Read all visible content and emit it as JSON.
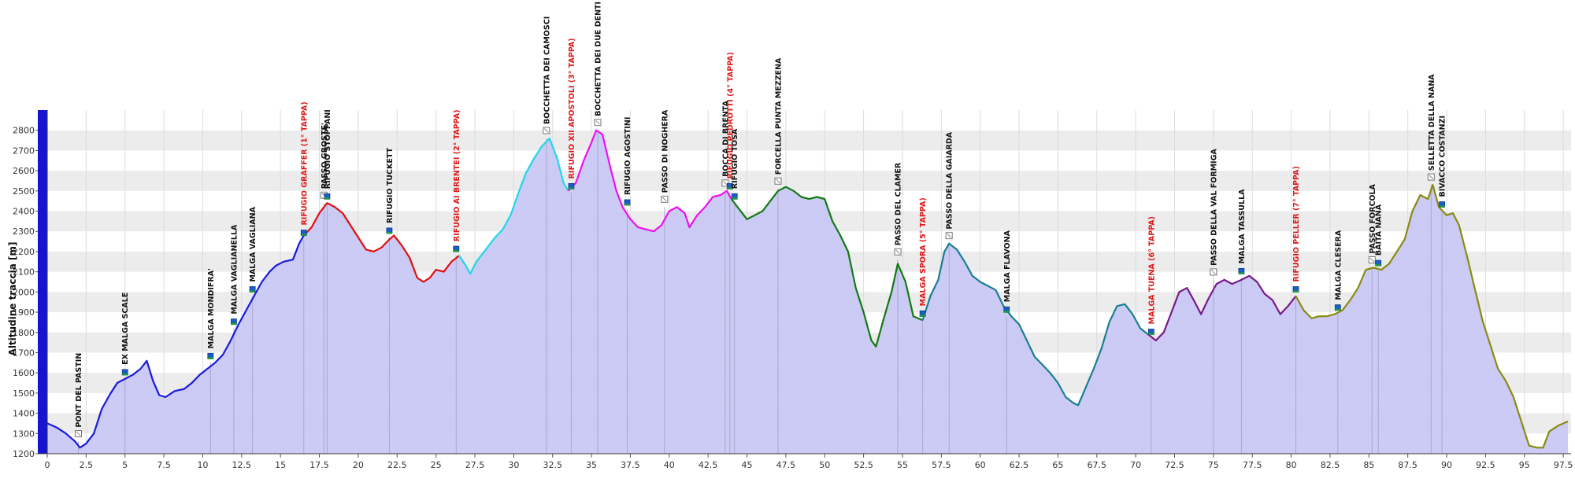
{
  "chart_data": {
    "type": "area",
    "ylabel": "Altitudine traccia [m]",
    "xlim": [
      0,
      98
    ],
    "ylim": [
      1200,
      2900
    ],
    "x_ticks": [
      "0",
      "2.5",
      "5",
      "7.5",
      "10",
      "12.5",
      "15",
      "17.5",
      "20",
      "22.5",
      "25",
      "27.5",
      "30",
      "32.5",
      "35",
      "37.5",
      "40",
      "42.5",
      "45",
      "47.5",
      "50",
      "52.5",
      "55",
      "57.5",
      "60",
      "62.5",
      "65",
      "67.5",
      "70",
      "72.5",
      "75",
      "77.5",
      "80",
      "82.5",
      "85",
      "87.5",
      "90",
      "92.5",
      "95",
      "97.5"
    ],
    "y_ticks": [
      "1200",
      "1300",
      "1400",
      "1500",
      "1600",
      "1700",
      "1800",
      "1900",
      "2000",
      "2100",
      "2200",
      "2300",
      "2400",
      "2500",
      "2600",
      "2700",
      "2800"
    ],
    "grid": true,
    "fill_color": "#c8c8f6",
    "segments": [
      {
        "stage": 1,
        "color": "#1a1adc",
        "points": [
          [
            0,
            1350
          ],
          [
            0.6,
            1330
          ],
          [
            1.2,
            1300
          ],
          [
            1.8,
            1260
          ],
          [
            2.1,
            1230
          ],
          [
            2.5,
            1250
          ],
          [
            3,
            1300
          ],
          [
            3.5,
            1420
          ],
          [
            4,
            1490
          ],
          [
            4.5,
            1550
          ],
          [
            5,
            1570
          ],
          [
            5.5,
            1590
          ],
          [
            6,
            1620
          ],
          [
            6.4,
            1660
          ],
          [
            6.8,
            1560
          ],
          [
            7.2,
            1490
          ],
          [
            7.6,
            1480
          ],
          [
            8.2,
            1510
          ],
          [
            8.8,
            1520
          ],
          [
            9.3,
            1550
          ],
          [
            9.8,
            1590
          ],
          [
            10.3,
            1620
          ],
          [
            10.8,
            1650
          ],
          [
            11.3,
            1690
          ],
          [
            11.8,
            1760
          ],
          [
            12.3,
            1840
          ],
          [
            12.8,
            1910
          ],
          [
            13.3,
            1980
          ],
          [
            13.8,
            2050
          ],
          [
            14.3,
            2100
          ],
          [
            14.7,
            2130
          ],
          [
            15.2,
            2150
          ],
          [
            15.8,
            2160
          ],
          [
            16.2,
            2240
          ],
          [
            16.5,
            2280
          ]
        ]
      },
      {
        "stage": 2,
        "color": "#e01010",
        "points": [
          [
            16.5,
            2280
          ],
          [
            17,
            2320
          ],
          [
            17.5,
            2390
          ],
          [
            18,
            2440
          ],
          [
            18.5,
            2420
          ],
          [
            19,
            2390
          ],
          [
            19.5,
            2330
          ],
          [
            20,
            2270
          ],
          [
            20.5,
            2210
          ],
          [
            21,
            2200
          ],
          [
            21.5,
            2220
          ],
          [
            22,
            2260
          ],
          [
            22.3,
            2280
          ],
          [
            22.8,
            2230
          ],
          [
            23.3,
            2170
          ],
          [
            23.8,
            2070
          ],
          [
            24.2,
            2050
          ],
          [
            24.6,
            2070
          ],
          [
            25,
            2110
          ],
          [
            25.5,
            2100
          ],
          [
            26,
            2150
          ],
          [
            26.5,
            2180
          ]
        ]
      },
      {
        "stage": 3,
        "color": "#20d8e8",
        "points": [
          [
            26.5,
            2180
          ],
          [
            27,
            2120
          ],
          [
            27.2,
            2090
          ],
          [
            27.6,
            2150
          ],
          [
            28.2,
            2210
          ],
          [
            28.8,
            2270
          ],
          [
            29.3,
            2310
          ],
          [
            29.8,
            2380
          ],
          [
            30.3,
            2490
          ],
          [
            30.8,
            2590
          ],
          [
            31.3,
            2660
          ],
          [
            31.8,
            2720
          ],
          [
            32.3,
            2760
          ],
          [
            32.8,
            2660
          ],
          [
            33.2,
            2540
          ],
          [
            33.5,
            2500
          ]
        ]
      },
      {
        "stage": 3,
        "color": "#ee10ee",
        "points": [
          [
            33.5,
            2500
          ],
          [
            34,
            2540
          ],
          [
            34.5,
            2650
          ],
          [
            35,
            2740
          ],
          [
            35.3,
            2800
          ],
          [
            35.7,
            2780
          ],
          [
            36.2,
            2620
          ],
          [
            36.6,
            2500
          ],
          [
            37,
            2420
          ],
          [
            37.5,
            2360
          ],
          [
            38,
            2320
          ],
          [
            38.5,
            2310
          ],
          [
            39,
            2300
          ],
          [
            39.5,
            2330
          ],
          [
            40,
            2400
          ],
          [
            40.5,
            2420
          ],
          [
            41,
            2390
          ],
          [
            41.3,
            2320
          ],
          [
            41.8,
            2380
          ],
          [
            42.3,
            2420
          ],
          [
            42.8,
            2470
          ],
          [
            43.3,
            2480
          ],
          [
            43.7,
            2500
          ],
          [
            44,
            2460
          ]
        ]
      },
      {
        "stage": 4,
        "color": "#117a11",
        "points": [
          [
            44,
            2460
          ],
          [
            44.5,
            2410
          ],
          [
            45,
            2360
          ],
          [
            45.5,
            2380
          ],
          [
            46,
            2400
          ],
          [
            46.5,
            2450
          ],
          [
            47,
            2500
          ],
          [
            47.5,
            2520
          ],
          [
            48,
            2500
          ],
          [
            48.5,
            2470
          ],
          [
            49,
            2460
          ],
          [
            49.5,
            2470
          ],
          [
            50,
            2460
          ],
          [
            50.5,
            2350
          ],
          [
            51,
            2280
          ],
          [
            51.5,
            2200
          ],
          [
            52,
            2020
          ],
          [
            52.5,
            1900
          ],
          [
            53,
            1760
          ],
          [
            53.3,
            1730
          ],
          [
            53.8,
            1870
          ],
          [
            54.3,
            2000
          ],
          [
            54.7,
            2140
          ],
          [
            55.2,
            2050
          ],
          [
            55.7,
            1880
          ],
          [
            56.3,
            1860
          ]
        ]
      },
      {
        "stage": 5,
        "color": "#1a7f90",
        "points": [
          [
            56.3,
            1860
          ],
          [
            56.8,
            1980
          ],
          [
            57.3,
            2060
          ],
          [
            57.7,
            2200
          ],
          [
            58,
            2240
          ],
          [
            58.5,
            2210
          ],
          [
            59,
            2150
          ],
          [
            59.5,
            2080
          ],
          [
            60,
            2050
          ],
          [
            60.5,
            2030
          ],
          [
            61,
            2010
          ],
          [
            61.5,
            1930
          ],
          [
            62,
            1880
          ],
          [
            62.5,
            1840
          ],
          [
            63,
            1760
          ],
          [
            63.5,
            1680
          ],
          [
            64,
            1640
          ],
          [
            64.5,
            1600
          ],
          [
            65,
            1550
          ],
          [
            65.5,
            1480
          ],
          [
            66,
            1450
          ],
          [
            66.3,
            1440
          ],
          [
            66.8,
            1530
          ],
          [
            67.3,
            1620
          ],
          [
            67.8,
            1720
          ],
          [
            68.3,
            1850
          ],
          [
            68.8,
            1930
          ],
          [
            69.3,
            1940
          ],
          [
            69.8,
            1890
          ],
          [
            70.3,
            1820
          ],
          [
            70.8,
            1790
          ]
        ]
      },
      {
        "stage": 6,
        "color": "#7a1a88",
        "points": [
          [
            70.8,
            1790
          ],
          [
            71.3,
            1760
          ],
          [
            71.8,
            1800
          ],
          [
            72.3,
            1900
          ],
          [
            72.8,
            2000
          ],
          [
            73.3,
            2020
          ],
          [
            73.8,
            1950
          ],
          [
            74.2,
            1890
          ],
          [
            74.7,
            1970
          ],
          [
            75.2,
            2040
          ],
          [
            75.7,
            2060
          ],
          [
            76.2,
            2040
          ],
          [
            76.8,
            2060
          ],
          [
            77.3,
            2080
          ],
          [
            77.8,
            2050
          ],
          [
            78.3,
            1990
          ],
          [
            78.8,
            1960
          ],
          [
            79.3,
            1890
          ],
          [
            79.8,
            1930
          ],
          [
            80.3,
            1980
          ]
        ]
      },
      {
        "stage": 7,
        "color": "#8a8a10",
        "points": [
          [
            80.3,
            1980
          ],
          [
            80.8,
            1910
          ],
          [
            81.3,
            1870
          ],
          [
            81.8,
            1880
          ],
          [
            82.3,
            1880
          ],
          [
            82.8,
            1890
          ],
          [
            83.3,
            1910
          ],
          [
            83.8,
            1960
          ],
          [
            84.3,
            2020
          ],
          [
            84.8,
            2110
          ],
          [
            85.3,
            2120
          ],
          [
            85.8,
            2110
          ],
          [
            86.3,
            2140
          ],
          [
            86.8,
            2200
          ],
          [
            87.3,
            2260
          ],
          [
            87.8,
            2400
          ],
          [
            88.3,
            2480
          ],
          [
            88.8,
            2460
          ],
          [
            89.1,
            2530
          ],
          [
            89.5,
            2420
          ],
          [
            90,
            2380
          ],
          [
            90.4,
            2390
          ],
          [
            90.8,
            2330
          ],
          [
            91.3,
            2180
          ],
          [
            91.8,
            2020
          ],
          [
            92.3,
            1860
          ],
          [
            92.8,
            1740
          ],
          [
            93.3,
            1620
          ],
          [
            93.8,
            1560
          ],
          [
            94.3,
            1480
          ],
          [
            94.8,
            1360
          ],
          [
            95.3,
            1240
          ],
          [
            95.8,
            1230
          ],
          [
            96.2,
            1230
          ],
          [
            96.6,
            1310
          ],
          [
            97.2,
            1340
          ],
          [
            97.8,
            1360
          ]
        ]
      }
    ],
    "waypoints": [
      {
        "label": "PONT DEL PASTIN",
        "x": 2.0,
        "y": 1260,
        "marker": "flag",
        "red": false
      },
      {
        "label": "EX MALGA SCALE",
        "x": 5.0,
        "y": 1570,
        "marker": "hut",
        "red": false
      },
      {
        "label": "MALGA MONDIFRA'",
        "x": 10.5,
        "y": 1650,
        "marker": "hut",
        "red": false
      },
      {
        "label": "MALGA VAGLIANELLA",
        "x": 12.0,
        "y": 1820,
        "marker": "hut",
        "red": false
      },
      {
        "label": "MALGA VAGLIANA",
        "x": 13.2,
        "y": 1980,
        "marker": "hut",
        "red": false
      },
      {
        "label": "RIFUGIO GRAFFER (1° TAPPA)",
        "x": 16.5,
        "y": 2260,
        "marker": "hut",
        "red": true
      },
      {
        "label": "PASSO GROSTE'",
        "x": 17.8,
        "y": 2440,
        "marker": "flag",
        "red": false
      },
      {
        "label": "RIFUGIO STOPPANI",
        "x": 18.0,
        "y": 2440,
        "marker": "hut",
        "red": false
      },
      {
        "label": "RIFUGIO TUCKETT",
        "x": 22.0,
        "y": 2270,
        "marker": "hut",
        "red": false
      },
      {
        "label": "RIFUGIO AI BRENTEI (2° TAPPA)",
        "x": 26.3,
        "y": 2180,
        "marker": "hut",
        "red": true
      },
      {
        "label": "BOCCHETTA DEI CAMOSCI",
        "x": 32.1,
        "y": 2760,
        "marker": "flag",
        "red": false
      },
      {
        "label": "RIFUGIO XII APOSTOLI (3° TAPPA)",
        "x": 33.7,
        "y": 2490,
        "marker": "hut",
        "red": true
      },
      {
        "label": "BOCCHETTA DEI DUE DENTI",
        "x": 35.4,
        "y": 2800,
        "marker": "flag",
        "red": false
      },
      {
        "label": "RIFUGIO AGOSTINI",
        "x": 37.3,
        "y": 2410,
        "marker": "hut",
        "red": false
      },
      {
        "label": "PASSO DI NOGHERA",
        "x": 39.7,
        "y": 2420,
        "marker": "flag",
        "red": false
      },
      {
        "label": "BOCCA DI BRENTA",
        "x": 43.6,
        "y": 2500,
        "marker": "flag",
        "red": false
      },
      {
        "label": "RIFUGIO PEDROTTI (4° TAPPA)",
        "x": 43.9,
        "y": 2490,
        "marker": "hut",
        "red": true
      },
      {
        "label": "RIFUGIO TOSA",
        "x": 44.2,
        "y": 2440,
        "marker": "hut",
        "red": false
      },
      {
        "label": "FORCELLA PUNTA MEZZENA",
        "x": 47.0,
        "y": 2510,
        "marker": "flag",
        "red": false
      },
      {
        "label": "PASSO DEL CLAMER",
        "x": 54.7,
        "y": 2160,
        "marker": "flag",
        "red": false
      },
      {
        "label": "MALGA SPORA (5° TAPPA)",
        "x": 56.3,
        "y": 1860,
        "marker": "hut",
        "red": true
      },
      {
        "label": "PASSO DELLA GAIARDA",
        "x": 58.0,
        "y": 2240,
        "marker": "flag",
        "red": false
      },
      {
        "label": "MALGA FLAVONA",
        "x": 61.7,
        "y": 1880,
        "marker": "hut",
        "red": false
      },
      {
        "label": "MALGA TUENA (6° TAPPA)",
        "x": 71.0,
        "y": 1770,
        "marker": "hut",
        "red": true
      },
      {
        "label": "PASSO DELLA VAL FORMIGA",
        "x": 75.0,
        "y": 2060,
        "marker": "flag",
        "red": false
      },
      {
        "label": "MALGA TASSULLA",
        "x": 76.8,
        "y": 2070,
        "marker": "hut",
        "red": false
      },
      {
        "label": "RIFUGIO PELLER (7° TAPPA)",
        "x": 80.3,
        "y": 1980,
        "marker": "hut",
        "red": true
      },
      {
        "label": "MALGA CLESERA",
        "x": 83.0,
        "y": 1890,
        "marker": "hut",
        "red": false
      },
      {
        "label": "PASSO FORCOLA",
        "x": 85.2,
        "y": 2120,
        "marker": "flag",
        "red": false
      },
      {
        "label": "BAITA NANA",
        "x": 85.6,
        "y": 2110,
        "marker": "hut",
        "red": false
      },
      {
        "label": "SELLETTA DELLA NANA",
        "x": 89.0,
        "y": 2530,
        "marker": "flag",
        "red": false
      },
      {
        "label": "BIVACCO COSTANZI",
        "x": 89.7,
        "y": 2400,
        "marker": "hut",
        "red": false
      }
    ]
  }
}
